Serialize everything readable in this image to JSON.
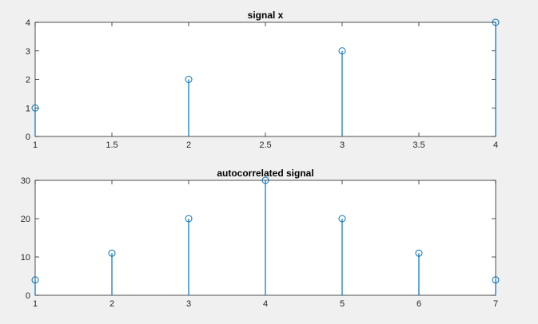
{
  "figure": {
    "background": "#f0f0f0",
    "stem_color": "#0072bd"
  },
  "chart_data": [
    {
      "type": "stem",
      "title": "signal x",
      "xlabel": "",
      "ylabel": "",
      "x": [
        1,
        2,
        3,
        4
      ],
      "y": [
        1,
        2,
        3,
        4
      ],
      "xlim": [
        1,
        4
      ],
      "ylim": [
        0,
        4
      ],
      "xticks": [
        1,
        1.5,
        2,
        2.5,
        3,
        3.5,
        4
      ],
      "yticks": [
        0,
        1,
        2,
        3,
        4
      ],
      "grid": false,
      "legend": "none"
    },
    {
      "type": "stem",
      "title": "autocorrelated signal",
      "xlabel": "",
      "ylabel": "",
      "x": [
        1,
        2,
        3,
        4,
        5,
        6,
        7
      ],
      "y": [
        4,
        11,
        20,
        30,
        20,
        11,
        4
      ],
      "xlim": [
        1,
        7
      ],
      "ylim": [
        0,
        30
      ],
      "xticks": [
        1,
        2,
        3,
        4,
        5,
        6,
        7
      ],
      "yticks": [
        0,
        10,
        20,
        30
      ],
      "grid": false,
      "legend": "none"
    }
  ]
}
